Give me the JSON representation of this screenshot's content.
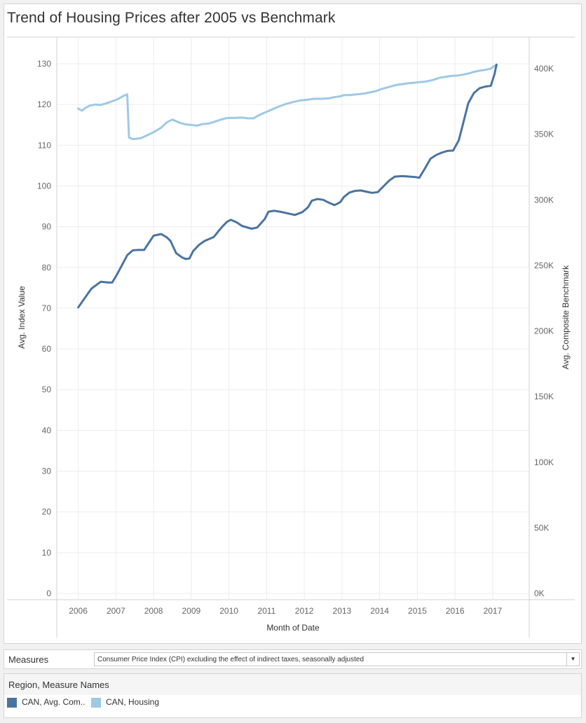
{
  "title": "Trend of Housing Prices after 2005 vs Benchmark",
  "colors": {
    "dark_series": "#4a74a0",
    "light_series": "#9ec9e6",
    "grid": "#ececec",
    "axis": "#d0d0d0"
  },
  "measures": {
    "label": "Measures",
    "selected": "Consumer Price Index (CPI) excluding the effect of indirect taxes, seasonally adjusted",
    "dropdown_icon": "triangle-down-icon"
  },
  "legend": {
    "title": "Region, Measure Names",
    "items": [
      {
        "label": "CAN, Avg. Com..",
        "color": "#4a74a0"
      },
      {
        "label": "CAN, Housing",
        "color": "#9ec9e6"
      }
    ]
  },
  "chart_data": {
    "type": "line",
    "title": "Trend of Housing Prices after 2005 vs Benchmark",
    "xlabel": "Month of Date",
    "ylabel_left": "Avg. Index Value",
    "ylabel_right": "Avg. Composite Benchmark",
    "x_ticks": [
      "2006",
      "2007",
      "2008",
      "2009",
      "2010",
      "2011",
      "2012",
      "2013",
      "2014",
      "2015",
      "2016",
      "2017"
    ],
    "x_range": [
      2005.45,
      2017.95
    ],
    "y_left_ticks": [
      "0",
      "10",
      "20",
      "30",
      "40",
      "50",
      "60",
      "70",
      "80",
      "90",
      "100",
      "110",
      "120",
      "130"
    ],
    "y_left_range": [
      0,
      130
    ],
    "y_right_ticks": [
      "0K",
      "50K",
      "100K",
      "150K",
      "200K",
      "250K",
      "300K",
      "350K",
      "400K"
    ],
    "y_right_range": [
      0,
      400000
    ],
    "grid": true,
    "series": [
      {
        "name": "CAN, Avg. Com..",
        "axis": "left",
        "color": "#4a74a0",
        "x": [
          2006.0,
          2006.35,
          2006.6,
          2006.8,
          2006.9,
          2007.0,
          2007.1,
          2007.3,
          2007.45,
          2007.6,
          2007.75,
          2008.0,
          2008.2,
          2008.35,
          2008.45,
          2008.6,
          2008.75,
          2008.85,
          2008.95,
          2009.05,
          2009.2,
          2009.35,
          2009.6,
          2009.8,
          2009.95,
          2010.05,
          2010.2,
          2010.35,
          2010.6,
          2010.75,
          2010.95,
          2011.05,
          2011.2,
          2011.35,
          2011.5,
          2011.75,
          2011.95,
          2012.1,
          2012.2,
          2012.35,
          2012.5,
          2012.65,
          2012.8,
          2012.95,
          2013.05,
          2013.2,
          2013.35,
          2013.5,
          2013.65,
          2013.8,
          2013.95,
          2014.1,
          2014.25,
          2014.4,
          2014.55,
          2014.65,
          2014.8,
          2014.95,
          2015.05,
          2015.2,
          2015.35,
          2015.5,
          2015.65,
          2015.8,
          2015.95,
          2016.1,
          2016.2,
          2016.35,
          2016.5,
          2016.65,
          2016.8,
          2016.95,
          2017.05,
          2017.1
        ],
        "y": [
          70.2,
          74.8,
          76.5,
          76.3,
          76.3,
          77.8,
          79.5,
          83.0,
          84.2,
          84.3,
          84.3,
          87.8,
          88.2,
          87.4,
          86.5,
          83.5,
          82.5,
          82.1,
          82.2,
          84.0,
          85.5,
          86.5,
          87.5,
          89.8,
          91.2,
          91.7,
          91.1,
          90.2,
          89.5,
          89.8,
          91.9,
          93.7,
          93.9,
          93.7,
          93.4,
          92.9,
          93.6,
          94.8,
          96.4,
          96.8,
          96.6,
          95.9,
          95.3,
          96.0,
          97.3,
          98.4,
          98.8,
          98.9,
          98.6,
          98.3,
          98.5,
          99.9,
          101.3,
          102.3,
          102.4,
          102.4,
          102.3,
          102.2,
          102.0,
          104.3,
          106.7,
          107.6,
          108.2,
          108.6,
          108.7,
          111.2,
          114.8,
          120.3,
          122.8,
          124.0,
          124.4,
          124.6,
          127.5,
          129.8
        ]
      },
      {
        "name": "CAN, Housing",
        "axis": "left",
        "color": "#9ec9e6",
        "x": [
          2006.0,
          2006.1,
          2006.2,
          2006.3,
          2006.45,
          2006.6,
          2006.75,
          2006.9,
          2007.05,
          2007.2,
          2007.3,
          2007.35,
          2007.45,
          2007.65,
          2007.8,
          2008.0,
          2008.2,
          2008.35,
          2008.5,
          2008.7,
          2008.85,
          2009.0,
          2009.15,
          2009.3,
          2009.45,
          2009.6,
          2009.75,
          2009.9,
          2010.05,
          2010.2,
          2010.35,
          2010.5,
          2010.65,
          2010.8,
          2010.95,
          2011.1,
          2011.3,
          2011.5,
          2011.7,
          2011.9,
          2012.1,
          2012.25,
          2012.45,
          2012.65,
          2012.8,
          2012.95,
          2013.05,
          2013.2,
          2013.4,
          2013.6,
          2013.75,
          2013.9,
          2014.05,
          2014.25,
          2014.45,
          2014.6,
          2014.75,
          2014.9,
          2015.05,
          2015.2,
          2015.4,
          2015.6,
          2015.75,
          2015.9,
          2016.05,
          2016.2,
          2016.35,
          2016.5,
          2016.65,
          2016.8,
          2016.95,
          2017.05,
          2017.1
        ],
        "y": [
          119.0,
          118.5,
          119.2,
          119.7,
          120.0,
          119.9,
          120.3,
          120.8,
          121.3,
          122.1,
          122.5,
          111.9,
          111.5,
          111.7,
          112.3,
          113.2,
          114.3,
          115.6,
          116.3,
          115.5,
          115.1,
          115.0,
          114.8,
          115.2,
          115.3,
          115.7,
          116.2,
          116.6,
          116.7,
          116.7,
          116.8,
          116.6,
          116.6,
          117.4,
          118.0,
          118.6,
          119.4,
          120.1,
          120.6,
          121.0,
          121.2,
          121.4,
          121.4,
          121.5,
          121.8,
          122.0,
          122.3,
          122.3,
          122.5,
          122.7,
          123.0,
          123.3,
          123.8,
          124.3,
          124.8,
          125.0,
          125.2,
          125.3,
          125.5,
          125.6,
          126.0,
          126.6,
          126.8,
          127.0,
          127.1,
          127.3,
          127.6,
          128.0,
          128.3,
          128.5,
          128.8,
          129.5,
          129.6
        ]
      }
    ]
  }
}
